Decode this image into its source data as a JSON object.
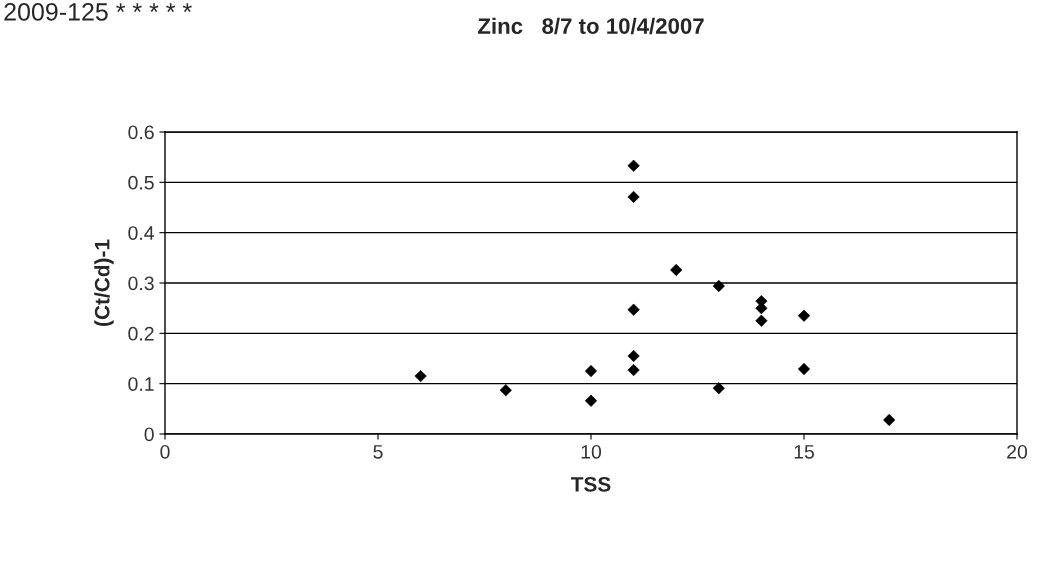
{
  "chart_data": {
    "type": "scatter",
    "title": "Zinc   8/7 to 10/4/2007",
    "xlabel": "TSS",
    "ylabel": "(Ct/Cd)-1",
    "annotations": [
      "2009-125 * * * * *"
    ],
    "x": [
      6,
      8,
      10,
      10,
      11,
      11,
      11,
      11,
      11,
      12,
      13,
      13,
      14,
      14,
      14,
      15,
      15,
      17
    ],
    "series": [
      {
        "color": "#000000",
        "values": [
          0.115,
          0.087,
          0.125,
          0.066,
          0.533,
          0.471,
          0.247,
          0.155,
          0.127,
          0.326,
          0.294,
          0.091,
          0.264,
          0.25,
          0.225,
          0.235,
          0.129,
          0.028
        ]
      }
    ],
    "xlim": [
      0,
      20
    ],
    "xticks": [
      0,
      5,
      10,
      15,
      20
    ],
    "ylim": [
      0,
      0.6
    ],
    "yticks": [
      0,
      0.1,
      0.2,
      0.3,
      0.4,
      0.5,
      0.6
    ],
    "grid": "y",
    "marker": "diamond",
    "legend": false
  }
}
